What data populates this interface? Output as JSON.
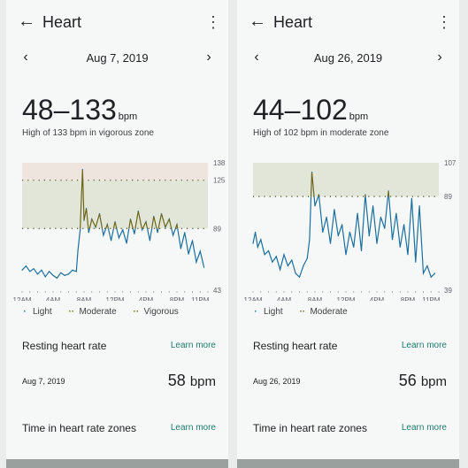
{
  "screens": [
    {
      "title": "Heart",
      "date": "Aug 7, 2019",
      "range": "48–133",
      "range_unit": "bpm",
      "subtitle": "High of 133 bpm in vigorous zone",
      "legend": [
        "Light",
        "Moderate",
        "Vigorous"
      ],
      "resting_title": "Resting heart rate",
      "learn_more": "Learn more",
      "resting_date": "Aug 7, 2019",
      "resting_value": "58",
      "resting_unit": "bpm",
      "zones_title": "Time in heart rate zones",
      "zones_learn_more": "Learn more",
      "chart_data": {
        "type": "line",
        "x_labels": [
          "12AM",
          "4AM",
          "8AM",
          "12PM",
          "4PM",
          "8PM",
          "11PM"
        ],
        "y_ticks": [
          138,
          125,
          89,
          43
        ],
        "ylim": [
          43,
          138
        ],
        "zone_thresholds": {
          "moderate": 89,
          "vigorous": 125
        },
        "series": [
          {
            "x": [
              0,
              0.5,
              1,
              1.5,
              2,
              2.5,
              3,
              3.5,
              4,
              4.5,
              5,
              5.5,
              6,
              6.5,
              7,
              7.2,
              7.5,
              7.8,
              8,
              8.3,
              8.6,
              9,
              9.5,
              10,
              10.5,
              11,
              11.5,
              12,
              12.5,
              13,
              13.5,
              14,
              14.5,
              15,
              15.5,
              16,
              16.5,
              17,
              17.5,
              18,
              18.5,
              19,
              19.5,
              20,
              20.5,
              21,
              21.5,
              22,
              22.5,
              23,
              23.5
            ],
            "values": [
              58,
              61,
              57,
              59,
              55,
              58,
              53,
              57,
              54,
              52,
              56,
              54,
              55,
              58,
              57,
              72,
              88,
              133,
              95,
              104,
              86,
              96,
              90,
              100,
              84,
              92,
              80,
              94,
              82,
              88,
              78,
              96,
              85,
              102,
              88,
              94,
              80,
              98,
              86,
              100,
              90,
              96,
              84,
              92,
              74,
              86,
              70,
              80,
              64,
              72,
              60
            ]
          }
        ]
      }
    },
    {
      "title": "Heart",
      "date": "Aug 26, 2019",
      "range": "44–102",
      "range_unit": "bpm",
      "subtitle": "High of 102 bpm in moderate zone",
      "legend": [
        "Light",
        "Moderate"
      ],
      "resting_title": "Resting heart rate",
      "learn_more": "Learn more",
      "resting_date": "Aug 26, 2019",
      "resting_value": "56",
      "resting_unit": "bpm",
      "zones_title": "Time in heart rate zones",
      "zones_learn_more": "Learn more",
      "chart_data": {
        "type": "line",
        "x_labels": [
          "12AM",
          "4AM",
          "8AM",
          "12PM",
          "4PM",
          "8PM",
          "11PM"
        ],
        "y_ticks": [
          107,
          89,
          39
        ],
        "ylim": [
          39,
          107
        ],
        "zone_thresholds": {
          "moderate": 89
        },
        "series": [
          {
            "x": [
              0,
              0.3,
              0.6,
              1,
              1.5,
              2,
              2.5,
              3,
              3.5,
              4,
              4.5,
              5,
              5.5,
              6,
              6.5,
              7,
              7.3,
              7.6,
              8,
              8.5,
              9,
              9.5,
              10,
              10.5,
              11,
              11.5,
              12,
              12.5,
              13,
              13.5,
              14,
              14.5,
              15,
              15.5,
              16,
              16.5,
              17,
              17.5,
              18,
              18.5,
              19,
              19.5,
              20,
              20.5,
              21,
              21.5,
              22,
              22.5,
              23,
              23.5
            ],
            "values": [
              64,
              70,
              62,
              66,
              58,
              60,
              54,
              57,
              50,
              58,
              52,
              55,
              48,
              46,
              52,
              56,
              66,
              102,
              84,
              90,
              70,
              78,
              64,
              82,
              68,
              74,
              58,
              70,
              62,
              80,
              60,
              90,
              68,
              84,
              64,
              78,
              72,
              92,
              66,
              80,
              62,
              74,
              58,
              88,
              54,
              84,
              48,
              52,
              46,
              48
            ]
          }
        ]
      }
    }
  ]
}
